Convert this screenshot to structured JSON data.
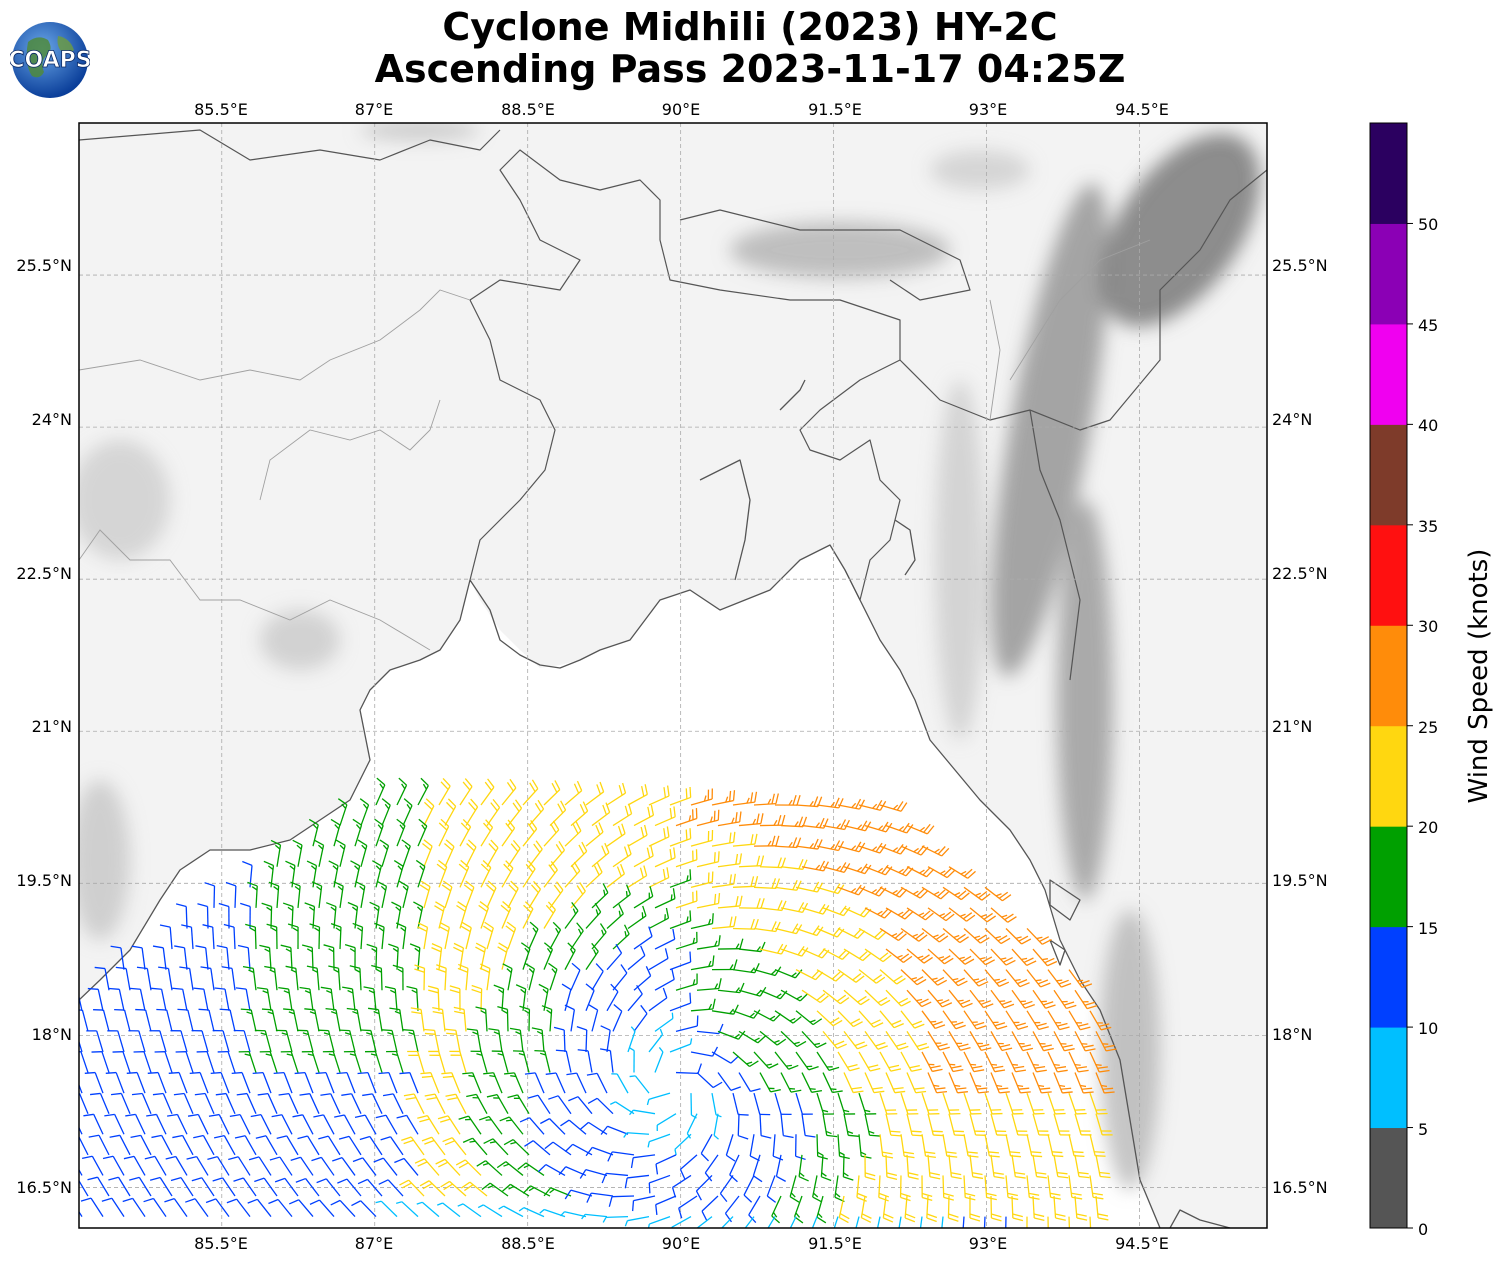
{
  "title_line1": "Cyclone Midhili (2023) HY-2C",
  "title_line2": "Ascending Pass 2023-11-17 04:25Z",
  "logo_text": "COAPS",
  "map": {
    "lon_range": [
      84.1,
      95.75
    ],
    "lat_range": [
      16.1,
      27.0
    ],
    "lon_ticks": [
      "85.5°E",
      "87°E",
      "88.5°E",
      "90°E",
      "91.5°E",
      "93°E",
      "94.5°E"
    ],
    "lon_tick_values": [
      85.5,
      87,
      88.5,
      90,
      91.5,
      93,
      94.5
    ],
    "lat_ticks": [
      "16.5°N",
      "18°N",
      "19.5°N",
      "21°N",
      "22.5°N",
      "24°N",
      "25.5°N"
    ],
    "lat_tick_values": [
      16.5,
      18,
      19.5,
      21,
      22.5,
      24,
      25.5
    ],
    "gridlines": true,
    "land_color": "#f4f4f4",
    "relief_color": "#8a8a8a",
    "coast_color": "#555555",
    "border_color": "#9a9a9a"
  },
  "colorbar": {
    "label": "Wind Speed (knots)",
    "bounds": [
      0,
      5,
      10,
      15,
      20,
      25,
      30,
      35,
      40,
      45,
      50,
      55
    ],
    "tick_labels": [
      "0",
      "5",
      "10",
      "15",
      "20",
      "25",
      "30",
      "35",
      "40",
      "45",
      "50"
    ],
    "colors": [
      "#555555",
      "#00bfff",
      "#0040ff",
      "#00a000",
      "#ffd710",
      "#ff8c0a",
      "#ff1010",
      "#7e3b2a",
      "#f000f0",
      "#8b00b5",
      "#2b0060"
    ]
  },
  "wind_field": {
    "center_lon": 89.9,
    "center_lat": 17.5,
    "swath_note_visible": false
  }
}
